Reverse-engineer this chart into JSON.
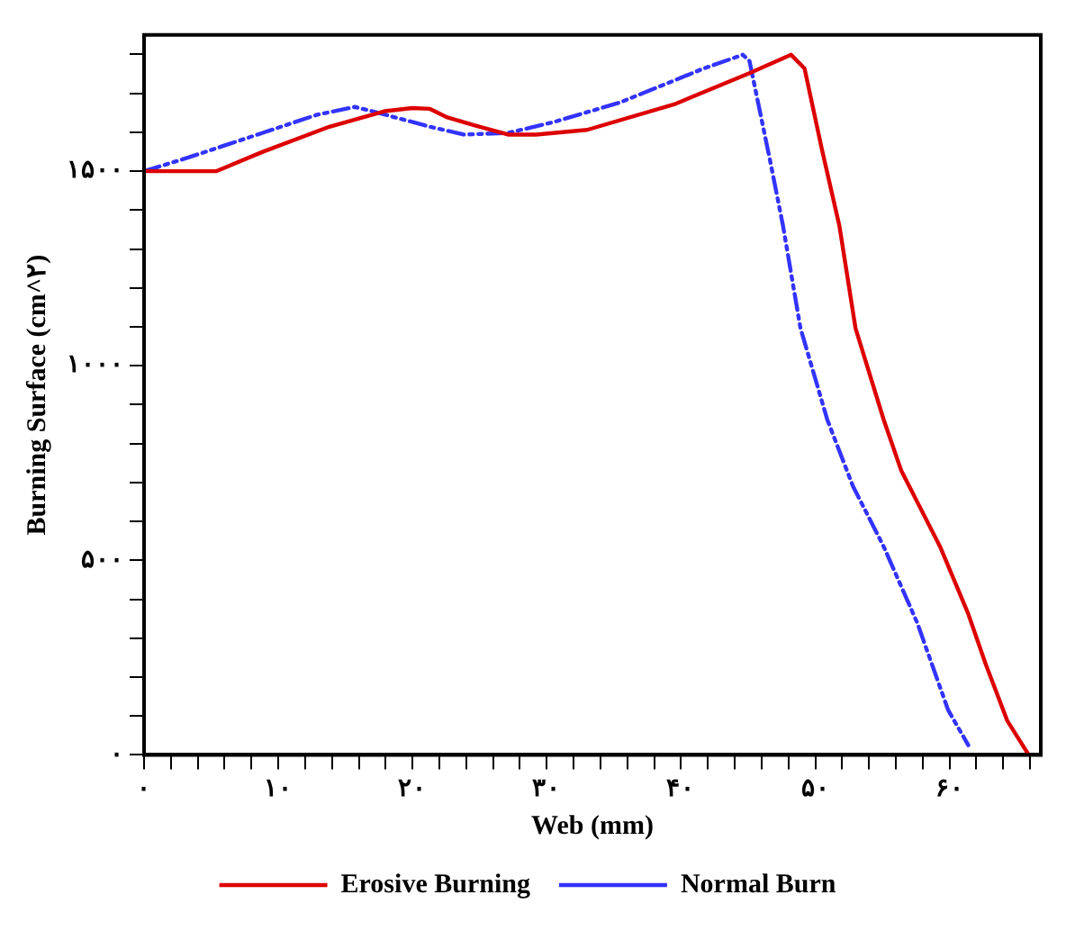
{
  "chart_data": {
    "type": "line",
    "xlabel": "Web (mm)",
    "ylabel": "Burning Surface (cm^۲)",
    "xlim": [
      0,
      66.8
    ],
    "ylim": [
      0,
      1850
    ],
    "xticks": [
      {
        "value": 0,
        "label": "۰"
      },
      {
        "value": 2,
        "label": null
      },
      {
        "value": 4,
        "label": null
      },
      {
        "value": 6,
        "label": null
      },
      {
        "value": 8,
        "label": null
      },
      {
        "value": 10,
        "label": "۱۰"
      },
      {
        "value": 12,
        "label": null
      },
      {
        "value": 14,
        "label": null
      },
      {
        "value": 16,
        "label": null
      },
      {
        "value": 18,
        "label": null
      },
      {
        "value": 20,
        "label": "۲۰"
      },
      {
        "value": 22,
        "label": null
      },
      {
        "value": 24,
        "label": null
      },
      {
        "value": 26,
        "label": null
      },
      {
        "value": 28,
        "label": null
      },
      {
        "value": 30,
        "label": "۳۰"
      },
      {
        "value": 32,
        "label": null
      },
      {
        "value": 34,
        "label": null
      },
      {
        "value": 36,
        "label": null
      },
      {
        "value": 38,
        "label": null
      },
      {
        "value": 40,
        "label": "۴۰"
      },
      {
        "value": 42,
        "label": null
      },
      {
        "value": 44,
        "label": null
      },
      {
        "value": 46,
        "label": null
      },
      {
        "value": 48,
        "label": null
      },
      {
        "value": 50,
        "label": "۵۰"
      },
      {
        "value": 52,
        "label": null
      },
      {
        "value": 54,
        "label": null
      },
      {
        "value": 56,
        "label": null
      },
      {
        "value": 58,
        "label": null
      },
      {
        "value": 60,
        "label": "۶۰"
      },
      {
        "value": 62,
        "label": null
      },
      {
        "value": 64,
        "label": null
      },
      {
        "value": 66,
        "label": null
      }
    ],
    "yticks": [
      {
        "value": 0,
        "label": "۰"
      },
      {
        "value": 100,
        "label": null
      },
      {
        "value": 200,
        "label": null
      },
      {
        "value": 300,
        "label": null
      },
      {
        "value": 400,
        "label": null
      },
      {
        "value": 500,
        "label": "۵۰۰"
      },
      {
        "value": 600,
        "label": null
      },
      {
        "value": 700,
        "label": null
      },
      {
        "value": 800,
        "label": null
      },
      {
        "value": 900,
        "label": null
      },
      {
        "value": 1000,
        "label": "۱۰۰۰"
      },
      {
        "value": 1100,
        "label": null
      },
      {
        "value": 1200,
        "label": null
      },
      {
        "value": 1300,
        "label": null
      },
      {
        "value": 1400,
        "label": null
      },
      {
        "value": 1500,
        "label": "۱۵۰۰"
      },
      {
        "value": 1600,
        "label": null
      },
      {
        "value": 1700,
        "label": null
      },
      {
        "value": 1800,
        "label": null
      }
    ],
    "legend": "bottom",
    "grid": false,
    "series": [
      {
        "name": "Erosive Burning",
        "color": "#dd0000",
        "line_style": "solid",
        "x": [
          0,
          5.4,
          8.8,
          13.8,
          17.9,
          20,
          21.3,
          22.6,
          24.6,
          27.1,
          29.2,
          33,
          39.6,
          45.1,
          48.2,
          49.2,
          50.5,
          51.8,
          53,
          55.1,
          56.4,
          59.3,
          61.4,
          62.7,
          64.3,
          65.9
        ],
        "values": [
          1500,
          1500,
          1549,
          1614,
          1654,
          1662,
          1660,
          1638,
          1618,
          1594,
          1594,
          1606,
          1673,
          1752,
          1799,
          1764,
          1555,
          1359,
          1096,
          861,
          731,
          535,
          362,
          233,
          88,
          0
        ]
      },
      {
        "name": "Normal Burn",
        "color": "#3333ff",
        "line_style": "dashed",
        "x": [
          0,
          3.3,
          8.8,
          12.9,
          15.7,
          17,
          21.3,
          23.8,
          27.1,
          30.5,
          35.5,
          41.7,
          44.6,
          45.1,
          46.7,
          47.6,
          48.9,
          50.9,
          52.8,
          55.1,
          57.6,
          59.9,
          61.4
        ],
        "values": [
          1500,
          1535,
          1598,
          1645,
          1665,
          1654,
          1614,
          1594,
          1598,
          1626,
          1677,
          1764,
          1799,
          1783,
          1516,
          1359,
          1096,
          861,
          691,
          535,
          339,
          115,
          25
        ]
      }
    ]
  }
}
